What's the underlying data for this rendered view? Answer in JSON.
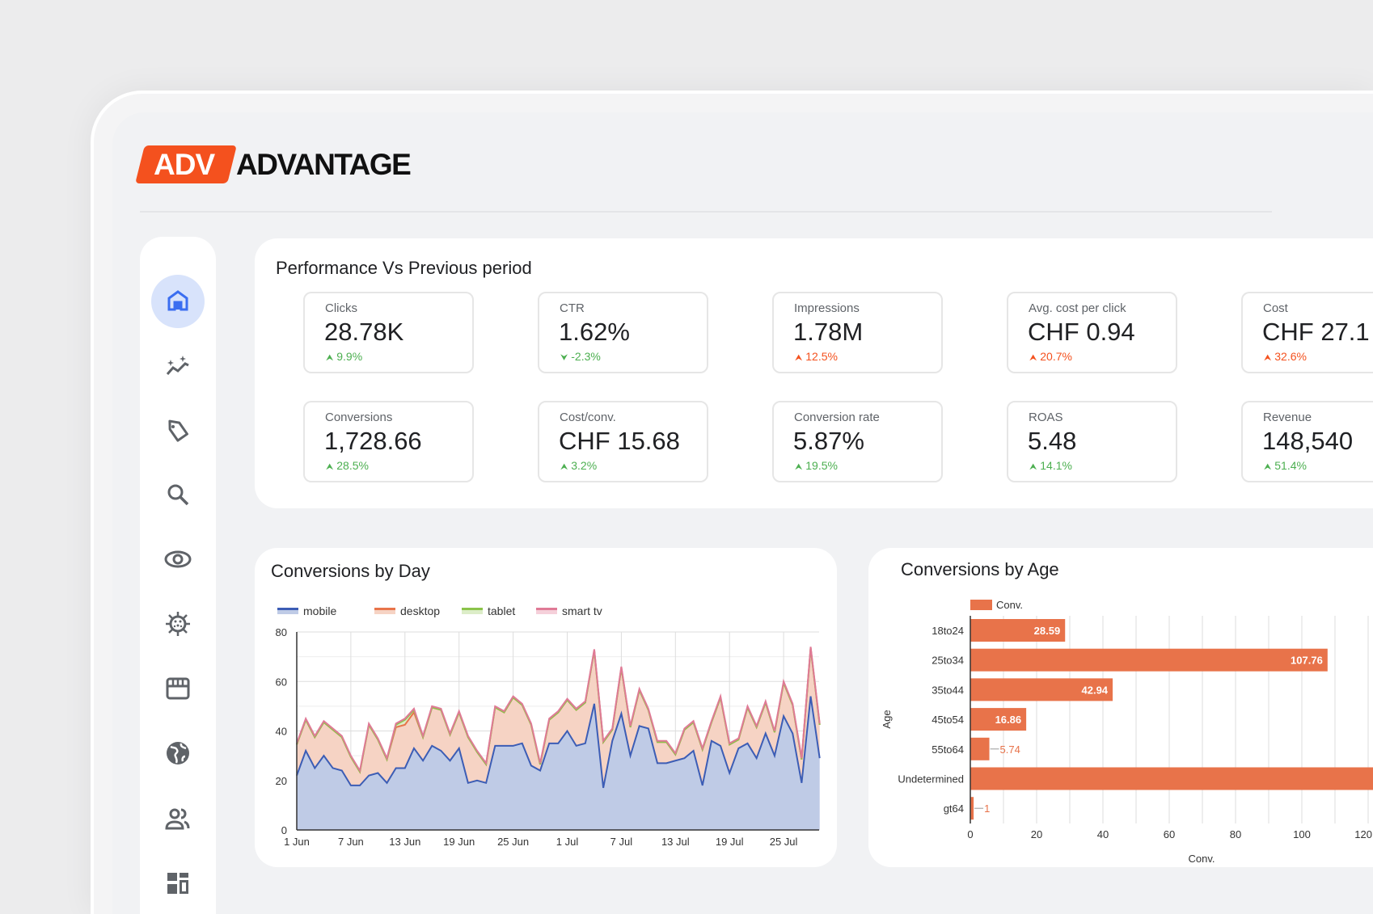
{
  "brand": {
    "logo_mark": "ADV",
    "name": "ADVANTAGE",
    "accent": "#f4511e"
  },
  "sidebar": {
    "items": [
      {
        "icon": "home-icon",
        "active": true
      },
      {
        "icon": "insights-icon"
      },
      {
        "icon": "tag-icon"
      },
      {
        "icon": "search-icon"
      },
      {
        "icon": "eye-icon"
      },
      {
        "icon": "virus-icon"
      },
      {
        "icon": "storefront-icon"
      },
      {
        "icon": "globe-icon"
      },
      {
        "icon": "people-icon"
      },
      {
        "icon": "dashboard-icon"
      }
    ]
  },
  "performance": {
    "title": "Performance Vs Previous period",
    "kpis": [
      {
        "label": "Clicks",
        "value": "28.78K",
        "delta": "9.9%",
        "dir": "up",
        "color": "#4caf50"
      },
      {
        "label": "CTR",
        "value": "1.62%",
        "delta": "-2.3%",
        "dir": "down",
        "color": "#4caf50"
      },
      {
        "label": "Impressions",
        "value": "1.78M",
        "delta": "12.5%",
        "dir": "up",
        "color": "#f4511e"
      },
      {
        "label": "Avg. cost per click",
        "value": "CHF 0.94",
        "delta": "20.7%",
        "dir": "up",
        "color": "#f4511e"
      },
      {
        "label": "Cost",
        "value": "CHF 27.1",
        "delta": "32.6%",
        "dir": "up",
        "color": "#f4511e"
      },
      {
        "label": "Conversions",
        "value": "1,728.66",
        "delta": "28.5%",
        "dir": "up",
        "color": "#4caf50"
      },
      {
        "label": "Cost/conv.",
        "value": "CHF 15.68",
        "delta": "3.2%",
        "dir": "up",
        "color": "#4caf50"
      },
      {
        "label": "Conversion rate",
        "value": "5.87%",
        "delta": "19.5%",
        "dir": "up",
        "color": "#4caf50"
      },
      {
        "label": "ROAS",
        "value": "5.48",
        "delta": "14.1%",
        "dir": "up",
        "color": "#4caf50"
      },
      {
        "label": "Revenue",
        "value": "148,540",
        "delta": "51.4%",
        "dir": "up",
        "color": "#4caf50"
      }
    ]
  },
  "chart_data": [
    {
      "type": "area",
      "stacked": true,
      "title": "Conversions by Day",
      "ylim": [
        0,
        80
      ],
      "yticks": [
        0,
        20,
        40,
        60,
        80
      ],
      "grid": true,
      "legend": "top-left",
      "x": [
        "1 Jun",
        "2 Jun",
        "3 Jun",
        "4 Jun",
        "5 Jun",
        "6 Jun",
        "7 Jun",
        "8 Jun",
        "9 Jun",
        "10 Jun",
        "11 Jun",
        "12 Jun",
        "13 Jun",
        "14 Jun",
        "15 Jun",
        "16 Jun",
        "17 Jun",
        "18 Jun",
        "19 Jun",
        "20 Jun",
        "21 Jun",
        "22 Jun",
        "23 Jun",
        "24 Jun",
        "25 Jun",
        "26 Jun",
        "27 Jun",
        "28 Jun",
        "29 Jun",
        "30 Jun",
        "1 Jul",
        "2 Jul",
        "3 Jul",
        "4 Jul",
        "5 Jul",
        "6 Jul",
        "7 Jul",
        "8 Jul",
        "9 Jul",
        "10 Jul",
        "11 Jul",
        "12 Jul",
        "13 Jul",
        "14 Jul",
        "15 Jul",
        "16 Jul",
        "17 Jul",
        "18 Jul",
        "19 Jul",
        "20 Jul",
        "21 Jul",
        "22 Jul",
        "23 Jul",
        "24 Jul",
        "25 Jul",
        "26 Jul",
        "27 Jul",
        "28 Jul",
        "29 Jul"
      ],
      "xticks": [
        "1 Jun",
        "7 Jun",
        "13 Jun",
        "19 Jun",
        "25 Jun",
        "1 Jul",
        "7 Jul",
        "13 Jul",
        "19 Jul",
        "25 Jul"
      ],
      "series": [
        {
          "name": "mobile",
          "color": "#3c5db5",
          "fill": "#bfcbe6",
          "values": [
            22,
            32,
            25,
            30,
            25,
            24,
            18,
            18,
            22,
            23,
            19,
            25,
            25,
            33,
            28,
            34,
            32,
            28,
            33,
            19,
            20,
            19,
            34,
            34,
            34,
            35,
            26,
            24,
            35,
            35,
            40,
            34,
            35,
            51,
            17,
            36,
            47,
            30,
            42,
            41,
            27,
            27,
            28,
            29,
            32,
            18,
            36,
            34,
            23,
            33,
            35,
            29,
            39,
            30,
            46,
            39,
            19,
            54,
            29
          ]
        },
        {
          "name": "desktop",
          "color": "#e8744a",
          "fill": "#f6d3c4",
          "values": [
            12.5,
            12.5,
            12.5,
            13.5,
            15.5,
            13.5,
            11.5,
            5.5,
            20.5,
            13.5,
            9.5,
            16.5,
            17.5,
            14.5,
            9.5,
            15.5,
            16.5,
            10.5,
            14.5,
            18.5,
            11.5,
            7.5,
            15.5,
            13.5,
            19.5,
            15.5,
            16.5,
            2.5,
            9.5,
            12.5,
            12.5,
            14.5,
            16.5,
            21.5,
            18.5,
            4.5,
            18.5,
            11.5,
            14.5,
            7.5,
            8.5,
            8.5,
            2.5,
            11.5,
            11.5,
            14.5,
            7.5,
            19.5,
            11.5,
            3.5,
            14.5,
            12.5,
            12.5,
            9.5,
            13.5,
            11.5,
            9.5,
            19.5,
            13.5
          ]
        },
        {
          "name": "tablet",
          "color": "#8bc34a",
          "fill": "#dcedc8",
          "values": [
            0,
            0,
            0,
            0,
            0,
            0,
            0,
            0,
            0,
            0,
            0,
            1,
            2,
            1,
            0,
            0,
            0,
            0,
            0,
            0,
            0,
            0,
            0,
            0,
            0,
            0,
            0,
            0,
            0,
            0,
            0,
            0,
            0,
            0,
            0,
            0,
            0,
            0,
            0,
            0,
            0,
            0,
            0,
            0,
            0,
            0,
            0,
            0,
            0,
            0,
            0,
            0,
            0,
            0,
            0,
            0,
            0,
            0,
            0
          ]
        },
        {
          "name": "smart tv",
          "color": "#e07a96",
          "fill": "#f5d0da",
          "values": [
            0.5,
            0.5,
            0.5,
            0.5,
            0.5,
            0.5,
            0.5,
            0.5,
            0.5,
            0.5,
            0.5,
            0.5,
            0.5,
            0.5,
            0.5,
            0.5,
            0.5,
            0.5,
            0.5,
            0.5,
            0.5,
            0.5,
            0.5,
            0.5,
            0.5,
            0.5,
            0.5,
            0.5,
            0.5,
            0.5,
            0.5,
            0.5,
            0.5,
            0.5,
            0.5,
            0.5,
            0.5,
            0.5,
            0.5,
            0.5,
            0.5,
            0.5,
            0.5,
            0.5,
            0.5,
            0.5,
            0.5,
            0.5,
            0.5,
            0.5,
            0.5,
            0.5,
            0.5,
            0.5,
            0.5,
            0.5,
            0.5,
            0.5,
            0.5
          ]
        }
      ]
    },
    {
      "type": "bar",
      "orientation": "horizontal",
      "title": "Conversions by Age",
      "xlabel": "Conv.",
      "ylabel": "Age",
      "legend": "top-left",
      "grid": true,
      "xticks": [
        0,
        20,
        40,
        60,
        80,
        100,
        120
      ],
      "categories": [
        "18to24",
        "25to34",
        "35to44",
        "45to54",
        "55to64",
        "Undetermined",
        "gt64"
      ],
      "series": [
        {
          "name": "Conv.",
          "color": "#e8734a",
          "values": [
            28.59,
            107.76,
            42.94,
            16.86,
            5.74,
            140,
            1
          ],
          "labels": [
            "28.59",
            "107.76",
            "42.94",
            "16.86",
            "5.74",
            "",
            "1"
          ]
        }
      ]
    }
  ]
}
